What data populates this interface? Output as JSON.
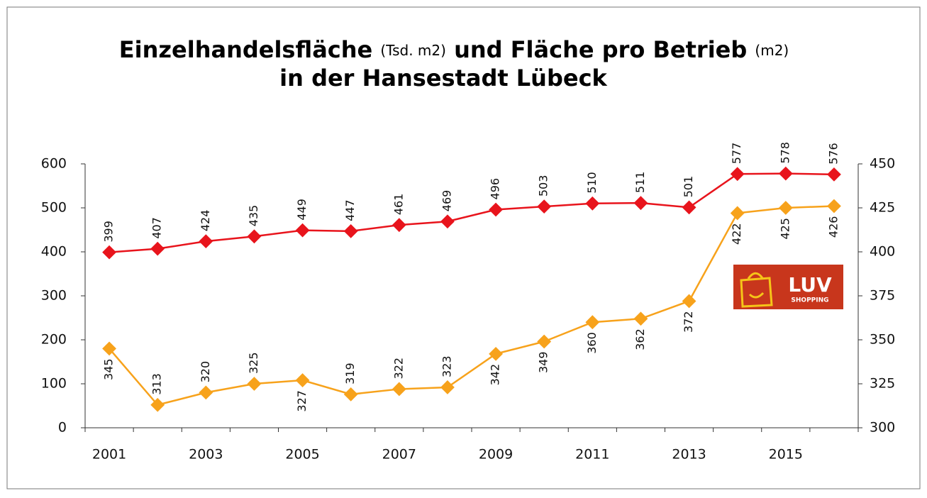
{
  "chart_data": {
    "type": "line",
    "title": {
      "line1": [
        "Einzelhandelsfläche",
        "(Tsd. m2)",
        "und Fläche pro Betrieb",
        "(m2)"
      ],
      "line2": "in der Hansestadt Lübeck"
    },
    "categories": [
      "2001",
      null,
      "2003",
      null,
      "2005",
      null,
      "2007",
      null,
      "2009",
      null,
      "2011",
      null,
      "2013",
      null,
      "2015",
      null
    ],
    "series": [
      {
        "color": "#e8141c",
        "values": [
          399,
          407,
          424,
          435,
          449,
          447,
          461,
          469,
          496,
          503,
          510,
          511,
          501,
          577,
          578,
          576
        ]
      },
      {
        "color": "#f7a21b",
        "axis": "y2",
        "values": [
          345,
          313,
          320,
          325,
          327,
          319,
          322,
          323,
          342,
          349,
          360,
          362,
          372,
          422,
          425,
          426
        ]
      }
    ],
    "ylim": [
      0,
      600
    ],
    "yticks": [
      0,
      100,
      200,
      300,
      400,
      500,
      600
    ],
    "y2lim": [
      300,
      450
    ],
    "y2ticks": [
      300,
      325,
      350,
      375,
      400,
      425,
      450
    ],
    "logo": {
      "text": "LUV",
      "subtext": "SHOPPING"
    }
  }
}
